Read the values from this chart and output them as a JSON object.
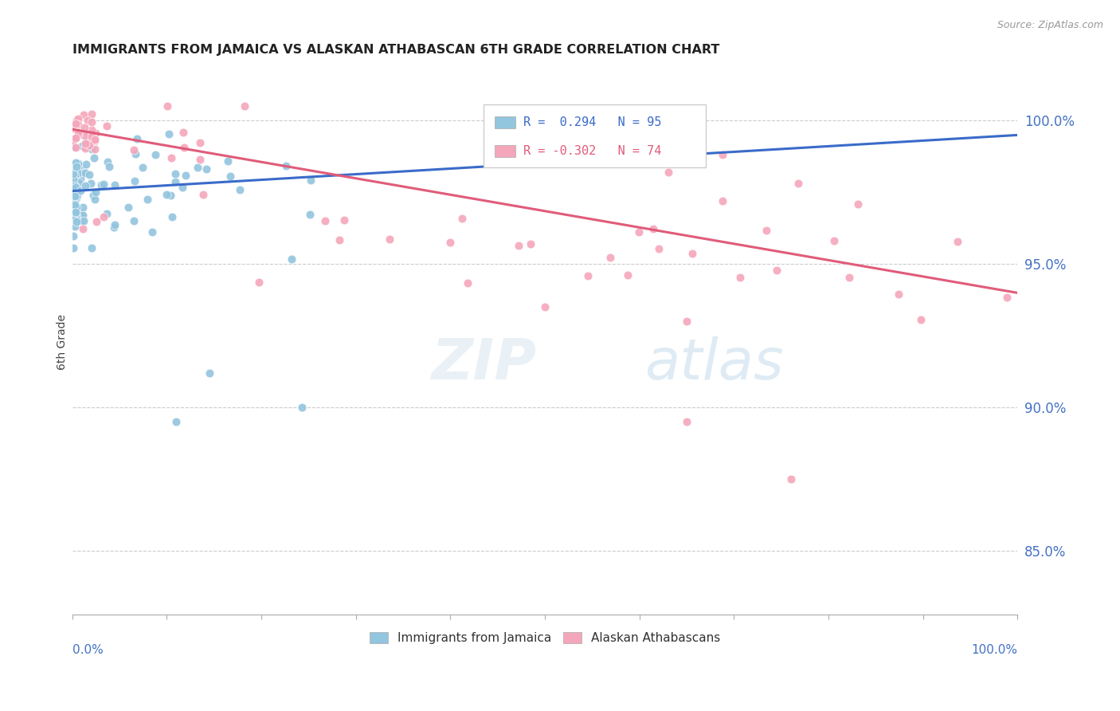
{
  "title": "IMMIGRANTS FROM JAMAICA VS ALASKAN ATHABASCAN 6TH GRADE CORRELATION CHART",
  "source": "Source: ZipAtlas.com",
  "ylabel": "6th Grade",
  "ylabel_right_ticks": [
    "85.0%",
    "90.0%",
    "95.0%",
    "100.0%"
  ],
  "ylabel_right_values": [
    0.85,
    0.9,
    0.95,
    1.0
  ],
  "legend_label1": "Immigrants from Jamaica",
  "legend_label2": "Alaskan Athabascans",
  "r1": 0.294,
  "n1": 95,
  "r2": -0.302,
  "n2": 74,
  "color1": "#92c5de",
  "color2": "#f4a6bb",
  "line_color1": "#3a6bc9",
  "line_color2": "#e05c7a",
  "watermark_zip": "ZIP",
  "watermark_atlas": "atlas",
  "xlim": [
    0.0,
    1.0
  ],
  "ylim": [
    0.828,
    1.018
  ],
  "blue_line_y0": 0.9755,
  "blue_line_y1": 0.995,
  "pink_line_y0": 0.997,
  "pink_line_y1": 0.94
}
